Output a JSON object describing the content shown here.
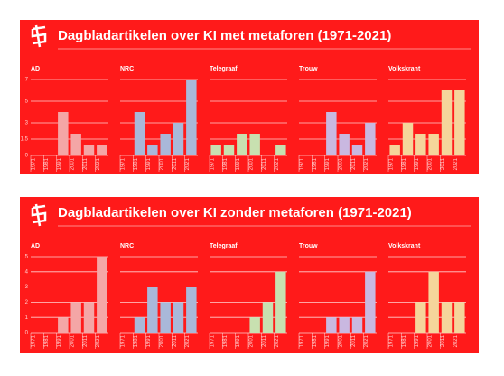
{
  "chart_data": [
    {
      "type": "bar",
      "title": "Dagbladartikelen over KI met metaforen (1971-2021)",
      "categories": [
        "1971",
        "1981",
        "1991",
        "2001",
        "2011",
        "2021"
      ],
      "ylim": [
        0,
        7
      ],
      "yticks": [
        0,
        1.5,
        3,
        5,
        7
      ],
      "grid": true,
      "panels": [
        {
          "title": "AD",
          "color": "#f4a6a6",
          "values": [
            0,
            0,
            4,
            2,
            1,
            1
          ]
        },
        {
          "title": "NRC",
          "color": "#a9b8d9",
          "values": [
            0,
            4,
            1,
            2,
            3,
            7
          ]
        },
        {
          "title": "Telegraaf",
          "color": "#c8e0b0",
          "values": [
            1,
            1,
            2,
            2,
            0,
            1
          ]
        },
        {
          "title": "Trouw",
          "color": "#c9b8e0",
          "values": [
            0,
            0,
            4,
            2,
            1,
            3
          ]
        },
        {
          "title": "Volkskrant",
          "color": "#f5d59b",
          "values": [
            1,
            3,
            2,
            2,
            6,
            6
          ]
        }
      ]
    },
    {
      "type": "bar",
      "title": "Dagbladartikelen over KI zonder metaforen (1971-2021)",
      "categories": [
        "1971",
        "1981",
        "1991",
        "2001",
        "2011",
        "2021"
      ],
      "ylim": [
        0,
        5
      ],
      "yticks": [
        0,
        1,
        2,
        3,
        4,
        5
      ],
      "grid": true,
      "panels": [
        {
          "title": "AD",
          "color": "#f4a6a6",
          "values": [
            0,
            0,
            1,
            2,
            2,
            5
          ]
        },
        {
          "title": "NRC",
          "color": "#a9b8d9",
          "values": [
            0,
            1,
            3,
            2,
            2,
            3
          ]
        },
        {
          "title": "Telegraaf",
          "color": "#c8e0b0",
          "values": [
            0,
            0,
            0,
            1,
            2,
            4
          ]
        },
        {
          "title": "Trouw",
          "color": "#c9b8e0",
          "values": [
            0,
            0,
            1,
            1,
            1,
            4
          ]
        },
        {
          "title": "Volkskrant",
          "color": "#f5d59b",
          "values": [
            0,
            0,
            2,
            4,
            2,
            2
          ]
        }
      ]
    }
  ]
}
